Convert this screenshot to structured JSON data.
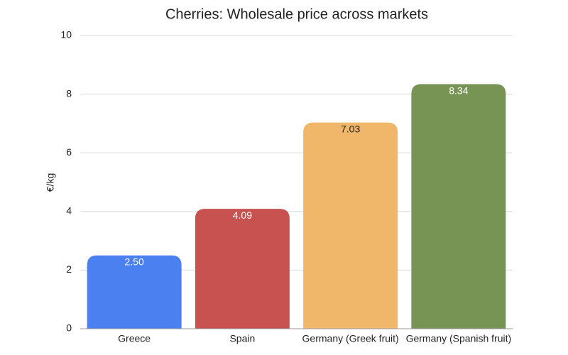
{
  "chart_data": {
    "type": "bar",
    "title": "Cherries: Wholesale price across markets",
    "y_label": "€/kg",
    "categories": [
      "Greece",
      "Spain",
      "Germany (Greek fruit)",
      "Germany (Spanish fruit)"
    ],
    "values": [
      2.5,
      4.09,
      7.03,
      8.34
    ],
    "value_labels": [
      "2.50",
      "4.09",
      "7.03",
      "8.34"
    ],
    "colors": [
      "#4a80f0",
      "#c85250",
      "#f0b66a",
      "#779455"
    ],
    "ylim": [
      0,
      10
    ],
    "yticks": [
      0,
      2,
      4,
      6,
      8,
      10
    ],
    "grid": true
  }
}
